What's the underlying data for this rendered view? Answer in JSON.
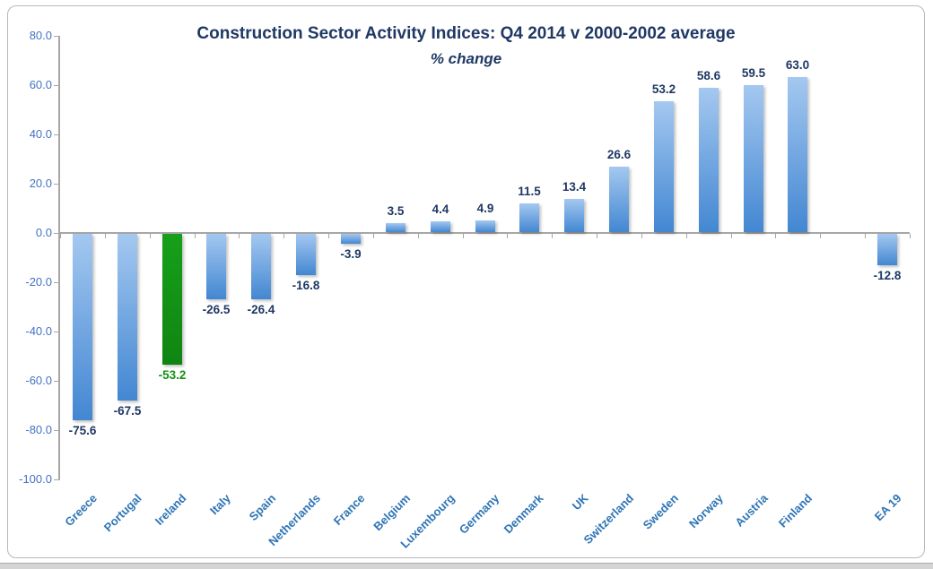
{
  "window": {
    "background": "#ffffff",
    "frame_border_color": "#b8b8b8",
    "bottom_edge_color": "#d4d4d4"
  },
  "chart_data": {
    "type": "bar",
    "title": "Construction Sector Activity Indices: Q4 2014 v 2000-2002 average",
    "subtitle": "% change",
    "categories": [
      "Greece",
      "Portugal",
      "Ireland",
      "Italy",
      "Spain",
      "Netherlands",
      "France",
      "Belgium",
      "Luxembourg",
      "Germany",
      "Denmark",
      "UK",
      "Switzerland",
      "Sweden",
      "Norway",
      "Austria",
      "Finland",
      "",
      "EA 19"
    ],
    "values": [
      -75.6,
      -67.5,
      -53.2,
      -26.5,
      -26.4,
      -16.8,
      -3.9,
      3.5,
      4.4,
      4.9,
      11.5,
      13.4,
      26.6,
      53.2,
      58.6,
      59.5,
      63.0,
      null,
      -12.8
    ],
    "value_labels": [
      "-75.6",
      "-67.5",
      "-53.2",
      "-26.5",
      "-26.4",
      "-16.8",
      "-3.9",
      "3.5",
      "4.4",
      "4.9",
      "11.5",
      "13.4",
      "26.6",
      "53.2",
      "58.6",
      "59.5",
      "63.0",
      "",
      "-12.8"
    ],
    "highlight_index": 2,
    "ylim": [
      -100,
      80
    ],
    "ytick_step": 20,
    "ytick_labels": [
      "80.0",
      "60.0",
      "40.0",
      "20.0",
      "0.0",
      "-20.0",
      "-40.0",
      "-60.0",
      "-80.0",
      "-100.0"
    ],
    "xlabel": "",
    "ylabel": "",
    "grid": false,
    "legend_position": "none",
    "colors": {
      "bar_gradient_top": "#a4c8f0",
      "bar_gradient_bottom": "#4387d2",
      "highlight_gradient_top": "#16a01a",
      "highlight_gradient_bottom": "#108512",
      "value_label": "#1f3864",
      "highlight_value_label": "#0f9310",
      "title": "#1f3864",
      "y_tick_label": "#4472c4",
      "x_tick_label": "#2e74b5",
      "axis_line": "#a6a6a6"
    }
  }
}
